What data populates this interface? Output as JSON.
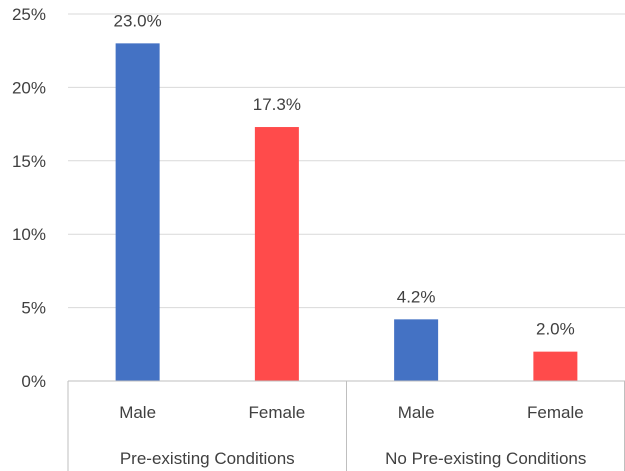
{
  "chart_data": {
    "type": "bar",
    "title": "",
    "xlabel": "",
    "ylabel": "",
    "ylim": [
      0,
      25
    ],
    "y_ticks": [
      "0%",
      "5%",
      "10%",
      "15%",
      "20%",
      "25%"
    ],
    "y_tick_values": [
      0,
      5,
      10,
      15,
      20,
      25
    ],
    "grid": true,
    "legend": "none",
    "groups": [
      {
        "label": "Pre-existing Conditions",
        "bars": [
          {
            "category": "Male",
            "value": 23.0,
            "label": "23.0%",
            "color": "#4472c4"
          },
          {
            "category": "Female",
            "value": 17.3,
            "label": "17.3%",
            "color": "#ff4b4b"
          }
        ]
      },
      {
        "label": "No Pre-existing Conditions",
        "bars": [
          {
            "category": "Male",
            "value": 4.2,
            "label": "4.2%",
            "color": "#4472c4"
          },
          {
            "category": "Female",
            "value": 2.0,
            "label": "2.0%",
            "color": "#ff4b4b"
          }
        ]
      }
    ]
  }
}
